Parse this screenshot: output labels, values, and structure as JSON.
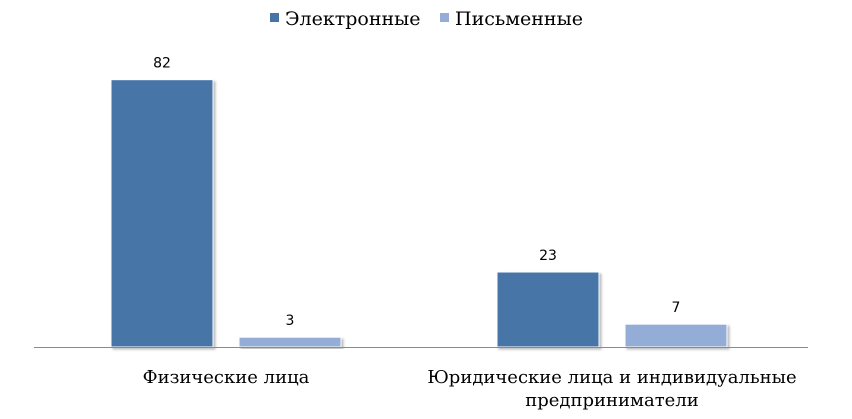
{
  "chart_data": {
    "type": "bar",
    "categories": [
      [
        "Физические лица"
      ],
      [
        "Юридические лица и индивидуальные",
        "предприниматели"
      ]
    ],
    "series": [
      {
        "name": "Электронные",
        "values": [
          82,
          23
        ],
        "color": "#4674a8"
      },
      {
        "name": "Письменные",
        "values": [
          3,
          7
        ],
        "color": "#94add6"
      }
    ],
    "ylim": [
      0,
      100
    ],
    "grid": false,
    "legend_position": "top-center",
    "data_labels": true
  }
}
